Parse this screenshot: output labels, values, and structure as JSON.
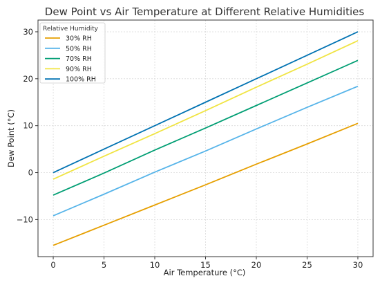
{
  "chart_data": {
    "type": "line",
    "title": "Dew Point vs Air Temperature at Different Relative Humidities",
    "xlabel": "Air Temperature (°C)",
    "ylabel": "Dew Point (°C)",
    "xlim": [
      -1.5,
      31.5
    ],
    "ylim": [
      -17.9,
      32.5
    ],
    "x_ticks": [
      0,
      5,
      10,
      15,
      20,
      25,
      30
    ],
    "y_ticks": [
      -10,
      0,
      10,
      20,
      30
    ],
    "grid": true,
    "legend": {
      "title": "Relative Humidity",
      "position": "top-left"
    },
    "x": [
      0,
      5,
      10,
      15,
      20,
      25,
      30
    ],
    "series": [
      {
        "name": "30% RH",
        "color": "#e69f00",
        "values": [
          -15.5,
          -11.2,
          -6.9,
          -2.6,
          1.8,
          6.1,
          10.5
        ]
      },
      {
        "name": "50% RH",
        "color": "#56b4e9",
        "values": [
          -9.2,
          -4.6,
          0.1,
          4.6,
          9.3,
          13.9,
          18.4
        ]
      },
      {
        "name": "70% RH",
        "color": "#009e73",
        "values": [
          -4.8,
          -0.1,
          4.8,
          9.5,
          14.3,
          19.1,
          23.9
        ]
      },
      {
        "name": "90% RH",
        "color": "#f0e442",
        "values": [
          -1.4,
          3.5,
          8.3,
          13.2,
          18.2,
          23.1,
          28.1
        ]
      },
      {
        "name": "100% RH",
        "color": "#0072b2",
        "values": [
          0,
          5,
          10,
          15,
          20,
          25,
          30
        ]
      }
    ]
  }
}
